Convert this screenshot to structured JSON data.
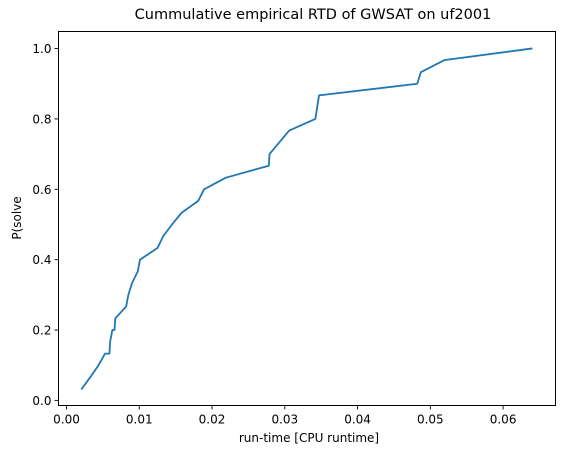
{
  "chart_data": {
    "type": "line",
    "title": "Cummulative empirical RTD of GWSAT on uf2001",
    "xlabel": "run-time [CPU runtime]",
    "ylabel": "P(solve",
    "xlim": [
      -0.0011,
      0.0672
    ],
    "ylim": [
      -0.0145,
      1.0485
    ],
    "xticks": [
      0.0,
      0.01,
      0.02,
      0.03,
      0.04,
      0.05,
      0.06
    ],
    "xtick_labels": [
      "0.00",
      "0.01",
      "0.02",
      "0.03",
      "0.04",
      "0.05",
      "0.06"
    ],
    "yticks": [
      0.0,
      0.2,
      0.4,
      0.6,
      0.8,
      1.0
    ],
    "ytick_labels": [
      "0.0",
      "0.2",
      "0.4",
      "0.6",
      "0.8",
      "1.0"
    ],
    "grid": false,
    "line_color": "#1f77b4",
    "series": [
      {
        "x": [
          0.0021,
          0.0033,
          0.0044,
          0.0053,
          0.0059,
          0.006,
          0.0063,
          0.0066,
          0.0067,
          0.0082,
          0.0085,
          0.009,
          0.0098,
          0.0101,
          0.0125,
          0.0133,
          0.0145,
          0.0158,
          0.0181,
          0.0189,
          0.0219,
          0.0278,
          0.0279,
          0.0306,
          0.0342,
          0.0347,
          0.0482,
          0.0487,
          0.0519,
          0.0639
        ],
        "y": [
          0.033,
          0.067,
          0.1,
          0.133,
          0.133,
          0.167,
          0.2,
          0.2,
          0.233,
          0.267,
          0.3,
          0.333,
          0.367,
          0.4,
          0.433,
          0.467,
          0.5,
          0.533,
          0.567,
          0.6,
          0.633,
          0.667,
          0.7,
          0.767,
          0.8,
          0.867,
          0.9,
          0.933,
          0.967,
          1.0
        ]
      }
    ]
  }
}
